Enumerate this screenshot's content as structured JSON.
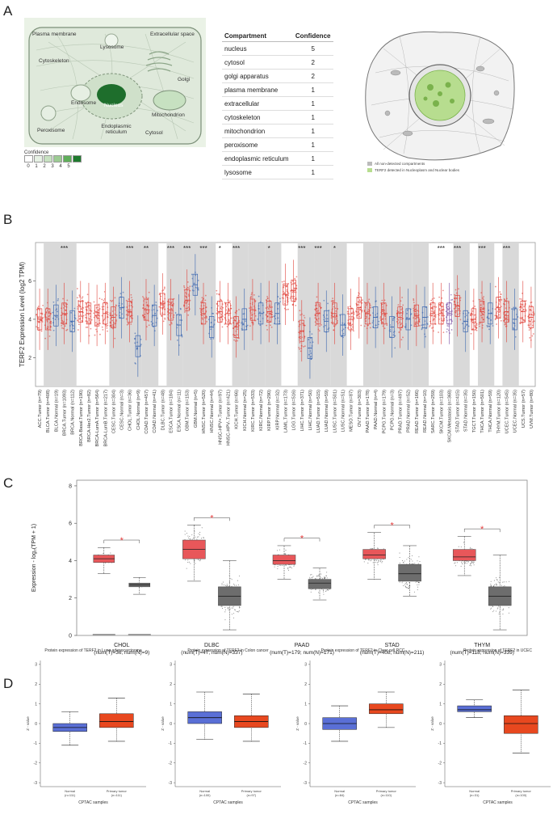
{
  "panels": {
    "a": "A",
    "b": "B",
    "c": "C",
    "d": "D"
  },
  "cell_diagram": {
    "labels": {
      "plasma_membrane": "Plasma membrane",
      "extracellular": "Extracellular space",
      "lysosome": "Lysosome",
      "cytoskeleton": "Cytoskeleton",
      "golgi": "Golgi",
      "endosome": "Endosome",
      "nucleus": "Nucleus",
      "mitochondrion": "Mitochondrion",
      "peroxisome": "Peroxisome",
      "er": "Endoplasmic reticulum",
      "cytosol": "Cytosol"
    },
    "confidence_title": "Confidence",
    "confidence_scale": [
      "0",
      "1",
      "2",
      "3",
      "4",
      "5"
    ],
    "confidence_colors": [
      "#ffffff",
      "#e6f1e4",
      "#c7e1c1",
      "#9ccb93",
      "#5fae5a",
      "#1f7a2e"
    ]
  },
  "compartment_table": {
    "headers": [
      "Compartment",
      "Confidence"
    ],
    "rows": [
      [
        "nucleus",
        "5"
      ],
      [
        "cytosol",
        "2"
      ],
      [
        "golgi apparatus",
        "2"
      ],
      [
        "plasma membrane",
        "1"
      ],
      [
        "extracellular",
        "1"
      ],
      [
        "cytoskeleton",
        "1"
      ],
      [
        "mitochondrion",
        "1"
      ],
      [
        "peroxisome",
        "1"
      ],
      [
        "endoplasmic reticulum",
        "1"
      ],
      [
        "lysosome",
        "1"
      ]
    ]
  },
  "cell_image_legend": {
    "gray": "All non-detected compartments",
    "green": "TERF2 detected in Nucleoplasm and Nuclear bodies"
  },
  "chart_data": [
    {
      "type": "box",
      "panel": "B",
      "ylabel": "TERF2 Expression Level (log2 TPM)",
      "yticks": [
        "2",
        "4",
        "6"
      ],
      "ylim": [
        0.5,
        8
      ],
      "categories": [
        "ACC.Tumor (n=79)",
        "BLCA.Tumor (n=408)",
        "BLCA.Normal (n=19)",
        "BRCA.Tumor (n=1093)",
        "BRCA.Normal (n=112)",
        "BRCA-Basal.Tumor (n=190)",
        "BRCA-Her2.Tumor (n=82)",
        "BRCA-LumA.Tumor (n=564)",
        "BRCA-LumB.Tumor (n=217)",
        "CESC.Tumor (n=304)",
        "CESC.Normal (n=3)",
        "CHOL.Tumor (n=36)",
        "CHOL.Normal (n=9)",
        "COAD.Tumor (n=457)",
        "COAD.Normal (n=41)",
        "DLBC.Tumor (n=48)",
        "ESCA.Tumor (n=184)",
        "ESCA.Normal (n=11)",
        "GBM.Tumor (n=153)",
        "GBM.Normal (n=5)",
        "HNSC.Tumor (n=520)",
        "HNSC.Normal (n=44)",
        "HNSC-HPV+.Tumor (n=97)",
        "HNSC-HPV-.Tumor (n=421)",
        "KICH.Tumor (n=66)",
        "KICH.Normal (n=25)",
        "KIRC.Tumor (n=533)",
        "KIRC.Normal (n=72)",
        "KIRP.Tumor (n=290)",
        "KIRP.Normal (n=32)",
        "LAML.Tumor (n=173)",
        "LGG.Tumor (n=516)",
        "LIHC.Tumor (n=371)",
        "LIHC.Normal (n=50)",
        "LUAD.Tumor (n=515)",
        "LUAD.Normal (n=59)",
        "LUSC.Tumor (n=501)",
        "LUSC.Normal (n=51)",
        "MESO.Tumor (n=87)",
        "OV.Tumor (n=303)",
        "PAAD.Tumor (n=178)",
        "PAAD.Normal (n=4)",
        "PCPG.Tumor (n=179)",
        "PCPG.Normal (n=3)",
        "PRAD.Tumor (n=497)",
        "PRAD.Normal (n=52)",
        "READ.Tumor (n=166)",
        "READ.Normal (n=10)",
        "SARC.Tumor (n=259)",
        "SKCM.Tumor (n=103)",
        "SKCM.Metastasis (n=368)",
        "STAD.Tumor (n=415)",
        "STAD.Normal (n=35)",
        "TGCT.Tumor (n=150)",
        "THCA.Tumor (n=501)",
        "THCA.Normal (n=59)",
        "THYM.Tumor (n=120)",
        "UCEC.Tumor (n=545)",
        "UCEC.Normal (n=35)",
        "UCS.Tumor (n=57)",
        "UVM.Tumor (n=80)"
      ],
      "medians": [
        4.0,
        4.0,
        4.2,
        4.3,
        3.9,
        4.4,
        4.3,
        4.2,
        4.3,
        4.1,
        4.6,
        4.4,
        2.6,
        4.5,
        4.2,
        4.8,
        4.5,
        3.7,
        5.0,
        5.8,
        4.3,
        3.6,
        4.4,
        4.3,
        3.6,
        4.0,
        4.5,
        4.3,
        4.4,
        4.3,
        5.3,
        5.5,
        3.4,
        2.5,
        4.3,
        3.9,
        4.3,
        3.7,
        4.0,
        4.6,
        4.3,
        4.1,
        4.3,
        3.6,
        4.1,
        4.0,
        4.2,
        4.1,
        4.3,
        4.3,
        4.3,
        4.7,
        3.9,
        4.0,
        4.4,
        4.3,
        4.6,
        4.4,
        4.0,
        4.4,
        4.1
      ],
      "significance": [
        "",
        "",
        "",
        "***",
        "",
        "",
        "",
        "",
        "",
        "",
        "",
        "***",
        "",
        "**",
        "",
        "",
        "***",
        "",
        "***",
        "",
        "***",
        "",
        "*",
        "",
        "***",
        "",
        "",
        "",
        "*",
        "",
        "",
        "",
        "***",
        "",
        "***",
        "",
        "*",
        "",
        "",
        "",
        "",
        "",
        "",
        "",
        "",
        "",
        "",
        "",
        "",
        "***",
        "",
        "***",
        "",
        "",
        "***",
        "",
        "",
        "***",
        "",
        "",
        ""
      ],
      "colors": {
        "tumor": "#e0443c",
        "normal": "#3a66b0",
        "metastasis": "#7a4fa3",
        "shade": "#d9d9d9"
      }
    },
    {
      "type": "box",
      "panel": "C",
      "ylabel": "Expression - log₂(TPM + 1)",
      "yticks": [
        "0",
        "2",
        "4",
        "6",
        "8"
      ],
      "ylim": [
        0,
        8.3
      ],
      "categories": [
        "CHOL",
        "DLBC",
        "PAAD",
        "STAD",
        "THYM"
      ],
      "sublabels": [
        "(num(T)=36; num(N)=9)",
        "(num(T)=47; num(N)=337)",
        "(num(T)=179; num(N)=171)",
        "(num(T)=408; num(N)=211)",
        "(num(T)=118; num(N)=339)"
      ],
      "tumor": [
        [
          3.3,
          3.9,
          4.1,
          4.3,
          4.7
        ],
        [
          2.9,
          4.1,
          4.6,
          5.1,
          5.9
        ],
        [
          3.0,
          3.8,
          4.0,
          4.3,
          4.8
        ],
        [
          3.0,
          4.1,
          4.3,
          4.6,
          5.5
        ],
        [
          3.2,
          4.0,
          4.2,
          4.6,
          5.3
        ]
      ],
      "normal": [
        [
          2.2,
          2.6,
          2.7,
          2.8,
          3.1
        ],
        [
          0.3,
          1.6,
          2.1,
          2.6,
          4.0
        ],
        [
          1.9,
          2.5,
          2.8,
          3.0,
          3.6
        ],
        [
          2.1,
          2.9,
          3.3,
          3.8,
          4.8
        ],
        [
          0.3,
          1.6,
          2.1,
          2.6,
          4.3
        ]
      ],
      "significance": [
        "*",
        "*",
        "*",
        "*",
        "*"
      ],
      "colors": {
        "tumor": "#e8575a",
        "normal": "#6d6d6d",
        "star": "#e53a3a"
      }
    },
    {
      "type": "box",
      "panel": "D",
      "plots": [
        {
          "title": "Protein expression of TERF2 in Lung adenocarcinoma",
          "normal": [
            -1.1,
            -0.4,
            -0.2,
            0.0,
            0.6
          ],
          "tumor": [
            -0.9,
            -0.2,
            0.1,
            0.5,
            1.3
          ],
          "n_normal": "(n=111)",
          "n_tumor": "(n=111)"
        },
        {
          "title": "Protein expression of TERF2 in Colon cancer",
          "normal": [
            -0.8,
            0.0,
            0.3,
            0.6,
            1.6
          ],
          "tumor": [
            -0.9,
            -0.2,
            0.1,
            0.4,
            1.5
          ],
          "n_normal": "(n=100)",
          "n_tumor": "(n=97)"
        },
        {
          "title": "Protein expression of TERF2 in Clear cell RCC",
          "normal": [
            -0.9,
            -0.3,
            0.0,
            0.3,
            0.9
          ],
          "tumor": [
            -0.2,
            0.5,
            0.7,
            1.0,
            1.6
          ],
          "n_normal": "(n=84)",
          "n_tumor": "(n=110)"
        },
        {
          "title": "Protein expression of TERF2 in UCEC",
          "normal": [
            0.3,
            0.6,
            0.7,
            0.9,
            1.2
          ],
          "tumor": [
            -1.5,
            -0.5,
            0.0,
            0.4,
            1.7
          ],
          "n_normal": "(n=31)",
          "n_tumor": "(n=100)"
        }
      ],
      "yticks": [
        "-3",
        "-2",
        "-1",
        "0",
        "1",
        "2",
        "3"
      ],
      "ylabel": "Z - value",
      "xlabel": "CPTAC samples",
      "group_labels": [
        "Normal",
        "Primary tumor"
      ],
      "colors": {
        "normal": "#5a6fd6",
        "tumor": "#e8481f"
      }
    }
  ]
}
